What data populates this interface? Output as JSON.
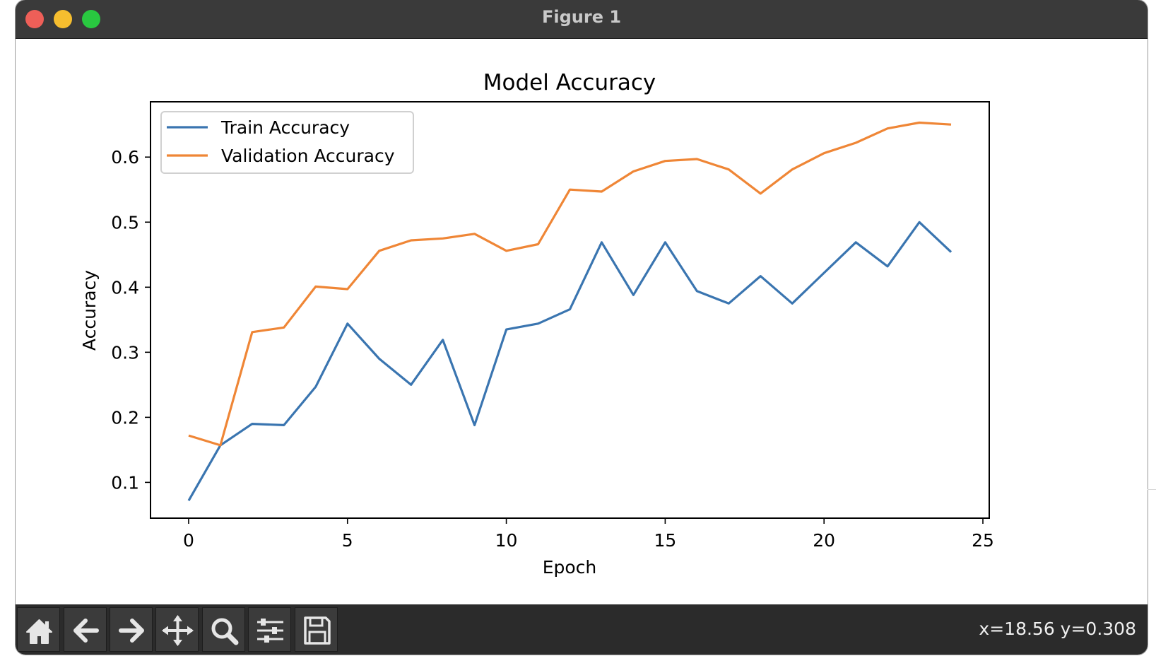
{
  "window": {
    "title": "Figure 1"
  },
  "toolbar": {
    "tools": [
      {
        "name": "home-button",
        "icon": "home-icon"
      },
      {
        "name": "back-button",
        "icon": "arrow-left-icon"
      },
      {
        "name": "forward-button",
        "icon": "arrow-right-icon"
      },
      {
        "name": "pan-button",
        "icon": "move-icon"
      },
      {
        "name": "zoom-button",
        "icon": "search-icon"
      },
      {
        "name": "configure-subplots-button",
        "icon": "sliders-icon"
      },
      {
        "name": "save-button",
        "icon": "floppy-disk-icon"
      }
    ],
    "coords": "x=18.56 y=0.308"
  },
  "chart_data": {
    "type": "line",
    "title": "Model Accuracy",
    "xlabel": "Epoch",
    "ylabel": "Accuracy",
    "xlim": [
      -1.2,
      25.2
    ],
    "ylim": [
      0.045,
      0.685
    ],
    "xticks": [
      0,
      5,
      10,
      15,
      20,
      25
    ],
    "yticks": [
      0.1,
      0.2,
      0.3,
      0.4,
      0.5,
      0.6
    ],
    "grid": false,
    "legend": "top-left",
    "x": [
      0,
      1,
      2,
      3,
      4,
      5,
      6,
      7,
      8,
      9,
      10,
      11,
      12,
      13,
      14,
      15,
      16,
      17,
      18,
      19,
      20,
      21,
      22,
      23,
      24
    ],
    "series": [
      {
        "name": "Train Accuracy",
        "color": "#3a75b0",
        "values": [
          0.072,
          0.157,
          0.19,
          0.188,
          0.247,
          0.344,
          0.29,
          0.25,
          0.319,
          0.188,
          0.335,
          0.344,
          0.366,
          0.469,
          0.388,
          0.469,
          0.394,
          0.375,
          0.417,
          0.375,
          0.422,
          0.469,
          0.432,
          0.5,
          0.454
        ]
      },
      {
        "name": "Validation Accuracy",
        "color": "#ef8636",
        "values": [
          0.172,
          0.157,
          0.331,
          0.338,
          0.401,
          0.397,
          0.456,
          0.472,
          0.475,
          0.482,
          0.456,
          0.466,
          0.55,
          0.547,
          0.578,
          0.594,
          0.597,
          0.581,
          0.544,
          0.581,
          0.606,
          0.622,
          0.644,
          0.653,
          0.65
        ]
      }
    ]
  }
}
